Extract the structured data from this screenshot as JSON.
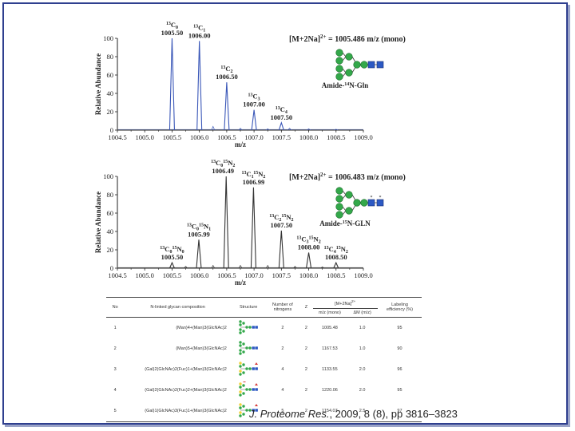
{
  "chart_data": [
    {
      "type": "line",
      "xlabel": "m/z",
      "ylabel": "Relative Abundance",
      "xlim": [
        1004.5,
        1009.0
      ],
      "ylim": [
        0,
        100
      ],
      "x_ticks": [
        "1004.5",
        "1005.0",
        "1005.5",
        "1006.0",
        "1006.5",
        "1007.0",
        "1007.5",
        "1008.0",
        "1008.5",
        "1009.0"
      ],
      "y_ticks": [
        "0",
        "20",
        "40",
        "60",
        "80",
        "100"
      ],
      "line_color": "#3a57b8",
      "peaks": [
        {
          "mz": 1005.5,
          "intensity": 100,
          "iso": "C",
          "sub": "0",
          "mass": "1005.50"
        },
        {
          "mz": 1006.0,
          "intensity": 97,
          "iso": "C",
          "sub": "1",
          "mass": "1006.00"
        },
        {
          "mz": 1006.5,
          "intensity": 52,
          "iso": "C",
          "sub": "2",
          "mass": "1006.50"
        },
        {
          "mz": 1007.0,
          "intensity": 22,
          "iso": "C",
          "sub": "3",
          "mass": "1007.00"
        },
        {
          "mz": 1007.5,
          "intensity": 8,
          "iso": "C",
          "sub": "4",
          "mass": "1007.50"
        }
      ],
      "minor_peaks": [
        {
          "mz": 1006.25,
          "intensity": 4
        },
        {
          "mz": 1006.75,
          "intensity": 2
        },
        {
          "mz": 1007.25,
          "intensity": 1.5
        },
        {
          "mz": 1007.65,
          "intensity": 2
        },
        {
          "mz": 1008.0,
          "intensity": 1.5
        },
        {
          "mz": 1008.5,
          "intensity": 1
        }
      ],
      "ion_label": "[M+2Na]",
      "ion_charge": "2+",
      "ion_value": " = 1005.486 m/z (mono)",
      "glycan_name_pre": "Amide-",
      "glycan_name_sup": "14",
      "glycan_name_post": "N-Gln"
    },
    {
      "type": "line",
      "xlabel": "m/z",
      "ylabel": "Relative Abundance",
      "xlim": [
        1004.5,
        1009.0
      ],
      "ylim": [
        0,
        100
      ],
      "x_ticks": [
        "1004.5",
        "1005.0",
        "1005.5",
        "1006.0",
        "1006.5",
        "1007.0",
        "1007.5",
        "1008.0",
        "1008.5",
        "1009.0"
      ],
      "y_ticks": [
        "0",
        "20",
        "40",
        "60",
        "80",
        "100"
      ],
      "line_color": "#333333",
      "peaks": [
        {
          "mz": 1005.5,
          "intensity": 6,
          "c": "0",
          "n": "0",
          "mass": "1005.50"
        },
        {
          "mz": 1005.99,
          "intensity": 31,
          "c": "0",
          "n": "1",
          "mass": "1005.99"
        },
        {
          "mz": 1006.49,
          "intensity": 100,
          "c": "0",
          "n": "2",
          "mass": "1006.49"
        },
        {
          "mz": 1006.99,
          "intensity": 88,
          "c": "1",
          "n": "2",
          "mass": "1006.99"
        },
        {
          "mz": 1007.5,
          "intensity": 41,
          "c": "2",
          "n": "2",
          "mass": "1007.50"
        },
        {
          "mz": 1008.0,
          "intensity": 17,
          "c": "3",
          "n": "2",
          "mass": "1008.00"
        },
        {
          "mz": 1008.5,
          "intensity": 6,
          "c": "4",
          "n": "2",
          "mass": "1008.50"
        }
      ],
      "minor_peaks": [
        {
          "mz": 1005.75,
          "intensity": 2
        },
        {
          "mz": 1006.25,
          "intensity": 3
        },
        {
          "mz": 1006.75,
          "intensity": 3
        },
        {
          "mz": 1007.25,
          "intensity": 3
        },
        {
          "mz": 1007.75,
          "intensity": 2
        },
        {
          "mz": 1008.25,
          "intensity": 1.5
        }
      ],
      "ion_label": "[M+2Na]",
      "ion_charge": "2+",
      "ion_value": " = 1006.483 m/z (mono)",
      "glycan_name_pre": "Amide-",
      "glycan_name_sup": "15",
      "glycan_name_post": "N-GLN"
    }
  ],
  "table": {
    "headers": {
      "no": "No",
      "composition": "N-linked glycan composition",
      "structure": "Structure",
      "nitrogens_1": "Number of",
      "nitrogens_2": "nitrogens",
      "z": "Z",
      "mna_group": "[M+2Na]",
      "mna_sup": "2+",
      "mz_mono": "m/z (mono)",
      "delta_m": "ΔM (m/z)",
      "eff_1": "Labeling",
      "eff_2": "efficiency (%)"
    },
    "rows": [
      {
        "no": "1",
        "composition": "(Man)4+(Man)3(GlcNAc)2",
        "nitrogens": "2",
        "z": "2",
        "mz": "1005.48",
        "dm": "1.0",
        "eff": "95"
      },
      {
        "no": "2",
        "composition": "(Man)5+(Man)3(GlcNAc)2",
        "nitrogens": "2",
        "z": "2",
        "mz": "1167.53",
        "dm": "1.0",
        "eff": "90"
      },
      {
        "no": "3",
        "composition": "(Gal)2(GlcNAc)2(Fuc)1+(Man)3(GlcNAc)2",
        "nitrogens": "4",
        "z": "2",
        "mz": "1133.55",
        "dm": "2.0",
        "eff": "96"
      },
      {
        "no": "4",
        "composition": "(Gal)2(GlcNAc)2(Fuc)2+(Man)3(GlcNAc)2",
        "nitrogens": "4",
        "z": "2",
        "mz": "1220.06",
        "dm": "2.0",
        "eff": "95"
      },
      {
        "no": "5",
        "composition": "(Gal)1(GlcNAc)3(Fuc)1+(Man)3(GlcNAc)2",
        "nitrogens": "5",
        "z": "2",
        "mz": "1154.07",
        "dm": "2.5",
        "eff": "97"
      }
    ]
  },
  "citation": {
    "journal": "J. Proteome Res.",
    "details": ", 2009, 8 (8), pp 3816–3823"
  }
}
